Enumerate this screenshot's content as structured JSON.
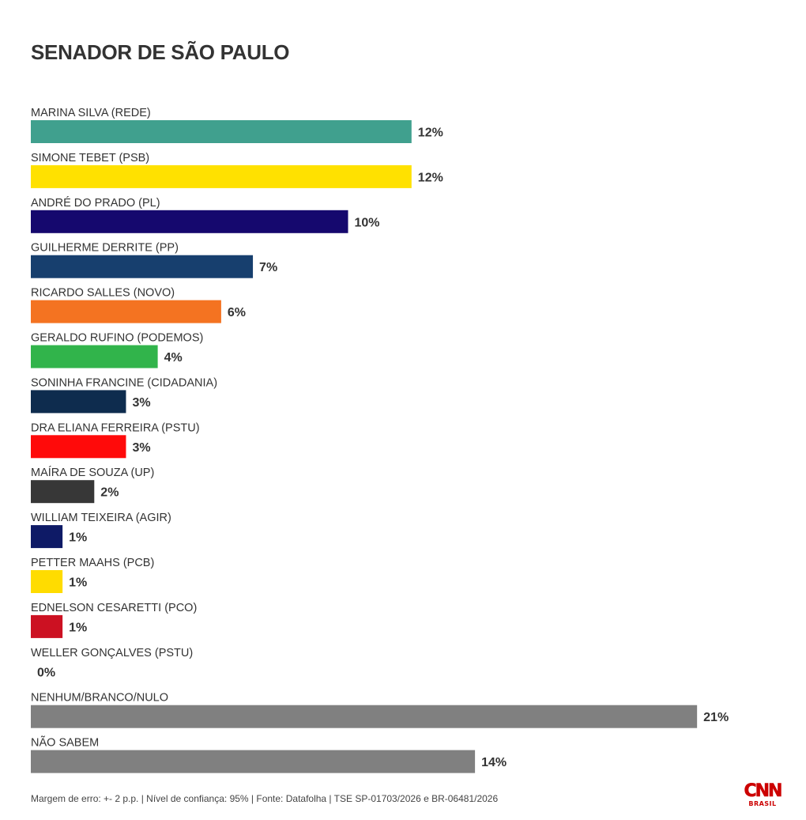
{
  "chart_data": {
    "type": "bar",
    "orientation": "horizontal",
    "title": "SENADOR DE SÃO PAULO",
    "unit": "%",
    "xlim": [
      0,
      21
    ],
    "categories": [
      "MARINA SILVA (REDE)",
      "SIMONE TEBET (PSB)",
      "ANDRÉ DO PRADO (PL)",
      "GUILHERME DERRITE (PP)",
      "RICARDO SALLES (NOVO)",
      "GERALDO RUFINO (PODEMOS)",
      "SONINHA FRANCINE (CIDADANIA)",
      "DRA ELIANA FERREIRA (PSTU)",
      "MAÍRA DE SOUZA (UP)",
      "WILLIAM TEIXEIRA (AGIR)",
      "PETTER MAAHS (PCB)",
      "EDNELSON CESARETTI (PCO)",
      "WELLER GONÇALVES (PSTU)",
      "NENHUM/BRANCO/NULO",
      "NÃO SABEM"
    ],
    "values": [
      12,
      12,
      10,
      7,
      6,
      4,
      3,
      3,
      2,
      1,
      1,
      1,
      0,
      21,
      14
    ],
    "value_labels": [
      "12%",
      "12%",
      "10%",
      "7%",
      "6%",
      "4%",
      "3%",
      "3%",
      "2%",
      "1%",
      "1%",
      "1%",
      "0%",
      "21%",
      "14%"
    ],
    "colors": [
      "#40a08e",
      "#ffe100",
      "#15086e",
      "#173f6e",
      "#f47321",
      "#31b44b",
      "#0e2c4e",
      "#ff0a0a",
      "#373737",
      "#0e1a66",
      "#ffdc00",
      "#cc1122",
      "#808080",
      "#808080",
      "#808080"
    ],
    "grid": false,
    "legend": "none"
  },
  "footer": {
    "note": "Margem de erro: +- 2 p.p. | Nível de confiança: 95% | Fonte: Datafolha | TSE SP-01703/2026 e BR-06481/2026"
  },
  "logo": {
    "brand": "CNN",
    "sub": "BRASIL"
  }
}
